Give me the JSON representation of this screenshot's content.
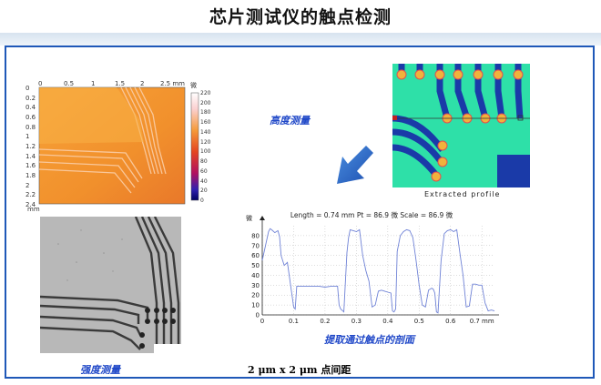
{
  "slide": {
    "title": "芯片测试仪的触点检测",
    "labels": {
      "height_measure": "高度测量",
      "intensity_measure": "强度测量",
      "extracted_profile": "Extracted profile",
      "profile_caption": "提取通过触点的剖面",
      "spacing_note": "2 μm x 2 μm 点间距"
    }
  },
  "heightmap": {
    "x_ticks": [
      "0",
      "0.5",
      "1",
      "1.5",
      "2",
      "2.5 mm"
    ],
    "y_ticks": [
      "0",
      "0.2",
      "0.4",
      "0.6",
      "0.8",
      "1",
      "1.2",
      "1.4",
      "1.6",
      "1.8",
      "2",
      "2.2",
      "2.4"
    ],
    "y_unit": "mm",
    "colorbar_unit": "微",
    "colorbar_ticks": [
      "220",
      "200",
      "180",
      "160",
      "140",
      "120",
      "100",
      "80",
      "60",
      "40",
      "20",
      "0"
    ]
  },
  "chart_data": {
    "type": "line",
    "title": "Length = 0.74 mm  Pt = 86.9 微  Scale = 86.9 微",
    "ylabel": "微",
    "xlabel": "mm",
    "xlim": [
      0,
      0.74
    ],
    "ylim": [
      0,
      90
    ],
    "x_ticks": [
      "0",
      "0.1",
      "0.2",
      "0.3",
      "0.4",
      "0.5",
      "0.6",
      "0.7 mm"
    ],
    "y_ticks": [
      "0",
      "10",
      "20",
      "30",
      "40",
      "50",
      "60",
      "70",
      "80"
    ],
    "grid": true,
    "series": [
      {
        "color": "#6f82d6",
        "x": [
          0.0,
          0.02,
          0.025,
          0.03,
          0.04,
          0.05,
          0.055,
          0.06,
          0.07,
          0.08,
          0.1,
          0.105,
          0.11,
          0.14,
          0.18,
          0.2,
          0.22,
          0.24,
          0.245,
          0.25,
          0.26,
          0.27,
          0.275,
          0.28,
          0.29,
          0.3,
          0.31,
          0.32,
          0.33,
          0.34,
          0.35,
          0.36,
          0.37,
          0.38,
          0.39,
          0.4,
          0.41,
          0.415,
          0.42,
          0.425,
          0.43,
          0.44,
          0.45,
          0.46,
          0.47,
          0.48,
          0.49,
          0.5,
          0.51,
          0.52,
          0.53,
          0.54,
          0.545,
          0.55,
          0.555,
          0.56,
          0.57,
          0.58,
          0.59,
          0.6,
          0.61,
          0.62,
          0.63,
          0.64,
          0.65,
          0.66,
          0.67,
          0.68,
          0.69,
          0.7,
          0.71,
          0.72,
          0.73,
          0.74
        ],
        "y": [
          55,
          84,
          87,
          86,
          83,
          85,
          79,
          60,
          50,
          53,
          8,
          6,
          29,
          29,
          29,
          28,
          29,
          29,
          10,
          6,
          3,
          63,
          78,
          86,
          85,
          84,
          86,
          60,
          45,
          34,
          8,
          10,
          24,
          25,
          24,
          23,
          22,
          4,
          3,
          6,
          64,
          80,
          84,
          86,
          85,
          78,
          55,
          30,
          10,
          8,
          25,
          27,
          26,
          22,
          3,
          2,
          55,
          82,
          85,
          86,
          84,
          86,
          62,
          40,
          8,
          9,
          31,
          31,
          30,
          30,
          12,
          4,
          5,
          4
        ]
      }
    ]
  }
}
